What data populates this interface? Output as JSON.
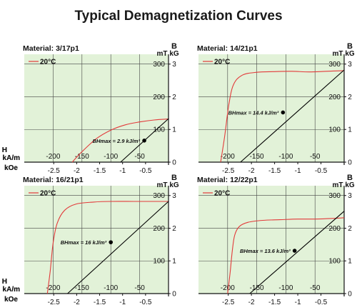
{
  "page": {
    "title": "Typical Demagnetization Curves"
  },
  "axis_labels": {
    "y_right_top": "B",
    "y_right_unit_mt": "mT",
    "y_right_unit_kg": "kG",
    "x_left_h": "H",
    "x_left_kam": "kA/m",
    "x_left_koe": "kOe"
  },
  "legend_label": "20°C",
  "colors": {
    "plot_bg": "#e2f2d8",
    "grid": "#444444",
    "bh_curve": "#e23a3a",
    "intrinsic_curve": "#000000"
  },
  "chart_data": [
    {
      "type": "line",
      "title": "Material: 3/17p1",
      "xlabel": "H (kA/m, kOe)",
      "ylabel": "B (mT, kG)",
      "xlim": [
        -250,
        0
      ],
      "ylim": [
        0,
        330
      ],
      "grid": true,
      "legend": "top-left",
      "x_ticks_kam": [
        "-200",
        "-150",
        "-100",
        "-50"
      ],
      "x_ticks_koe": [
        "-2.5",
        "-2",
        "-1.5",
        "-1",
        "-0.5"
      ],
      "y_ticks_mt": [
        "300",
        "200",
        "100"
      ],
      "y_ticks_kg": [
        "3",
        "2",
        "1",
        "0"
      ],
      "annotation": "BHmax = 2.9 kJ/m³",
      "series": [
        {
          "name": "20°C",
          "color": "#e23a3a",
          "points": [
            [
              -167,
              0
            ],
            [
              -150,
              32
            ],
            [
              -125,
              72
            ],
            [
              -100,
              98
            ],
            [
              -75,
              114
            ],
            [
              -50,
              123
            ],
            [
              -25,
              129
            ],
            [
              0,
              132
            ]
          ]
        },
        {
          "color": "#000000",
          "points": [
            [
              -83,
              0
            ],
            [
              0,
              133
            ]
          ]
        }
      ],
      "bhmax_point": [
        -42,
        66
      ]
    },
    {
      "type": "line",
      "title": "Material: 14/21p1",
      "xlabel": "H (kA/m, kOe)",
      "ylabel": "B (mT, kG)",
      "xlim": [
        -250,
        0
      ],
      "ylim": [
        0,
        330
      ],
      "grid": true,
      "legend": "top-left",
      "x_ticks_kam": [
        "-200",
        "-150",
        "-100",
        "-50"
      ],
      "x_ticks_koe": [
        "-2.5",
        "-2",
        "-1.5",
        "-1",
        "-0.5"
      ],
      "y_ticks_mt": [
        "300",
        "200",
        "100"
      ],
      "y_ticks_kg": [
        "3",
        "2",
        "1",
        "0"
      ],
      "annotation": "BHmax = 14.4 kJ/m³",
      "series": [
        {
          "name": "20°C",
          "color": "#e23a3a",
          "points": [
            [
              -212,
              0
            ],
            [
              -205,
              80
            ],
            [
              -198,
              175
            ],
            [
              -190,
              237
            ],
            [
              -175,
              266
            ],
            [
              -150,
              275
            ],
            [
              -120,
              277
            ],
            [
              -90,
              278
            ],
            [
              -60,
              276
            ],
            [
              -30,
              278
            ],
            [
              0,
              280
            ]
          ]
        },
        {
          "color": "#000000",
          "points": [
            [
              -178,
              0
            ],
            [
              0,
              282
            ]
          ]
        }
      ],
      "bhmax_point": [
        -105,
        152
      ]
    },
    {
      "type": "line",
      "title": "Material: 16/21p1",
      "xlabel": "H (kA/m, kOe)",
      "ylabel": "B (mT, kG)",
      "xlim": [
        -250,
        0
      ],
      "ylim": [
        0,
        330
      ],
      "grid": true,
      "legend": "top-left",
      "x_ticks_kam": [
        "-200",
        "-150",
        "-100",
        "-50"
      ],
      "x_ticks_koe": [
        "-2.5",
        "-2",
        "-1.5",
        "-1",
        "-0.5"
      ],
      "y_ticks_mt": [
        "300",
        "200",
        "100"
      ],
      "y_ticks_kg": [
        "3",
        "2",
        "1",
        "0"
      ],
      "annotation": "BHmax = 16 kJ/m³",
      "series": [
        {
          "name": "20°C",
          "color": "#e23a3a",
          "points": [
            [
              -210,
              0
            ],
            [
              -205,
              70
            ],
            [
              -200,
              155
            ],
            [
              -193,
              215
            ],
            [
              -180,
              255
            ],
            [
              -160,
              274
            ],
            [
              -130,
              280
            ],
            [
              -100,
              282
            ],
            [
              -60,
              282
            ],
            [
              -30,
              282
            ],
            [
              0,
              282
            ]
          ]
        },
        {
          "color": "#000000",
          "points": [
            [
              -175,
              0
            ],
            [
              0,
              282
            ]
          ]
        }
      ],
      "bhmax_point": [
        -100,
        157
      ]
    },
    {
      "type": "line",
      "title": "Material: 12/22p1",
      "xlabel": "H (kA/m, kOe)",
      "ylabel": "B (mT, kG)",
      "xlim": [
        -250,
        0
      ],
      "ylim": [
        0,
        330
      ],
      "grid": true,
      "legend": "top-left",
      "x_ticks_kam": [
        "-200",
        "-150",
        "-100",
        "-50"
      ],
      "x_ticks_koe": [
        "-2.5",
        "-2",
        "-1.5",
        "-1",
        "-0.5"
      ],
      "y_ticks_mt": [
        "300",
        "200",
        "100"
      ],
      "y_ticks_kg": [
        "3",
        "2",
        "1",
        "0"
      ],
      "annotation": "BHmax = 13.6 kJ/m³",
      "series": [
        {
          "name": "20°C",
          "color": "#e23a3a",
          "points": [
            [
              -200,
              0
            ],
            [
              -196,
              60
            ],
            [
              -192,
              130
            ],
            [
              -188,
              178
            ],
            [
              -180,
              205
            ],
            [
              -165,
              218
            ],
            [
              -140,
              224
            ],
            [
              -110,
              226
            ],
            [
              -80,
              228
            ],
            [
              -50,
              228
            ],
            [
              -20,
              230
            ],
            [
              0,
              232
            ]
          ]
        },
        {
          "color": "#000000",
          "points": [
            [
              -162,
              0
            ],
            [
              0,
              252
            ]
          ]
        }
      ],
      "bhmax_point": [
        -85,
        131
      ]
    }
  ]
}
